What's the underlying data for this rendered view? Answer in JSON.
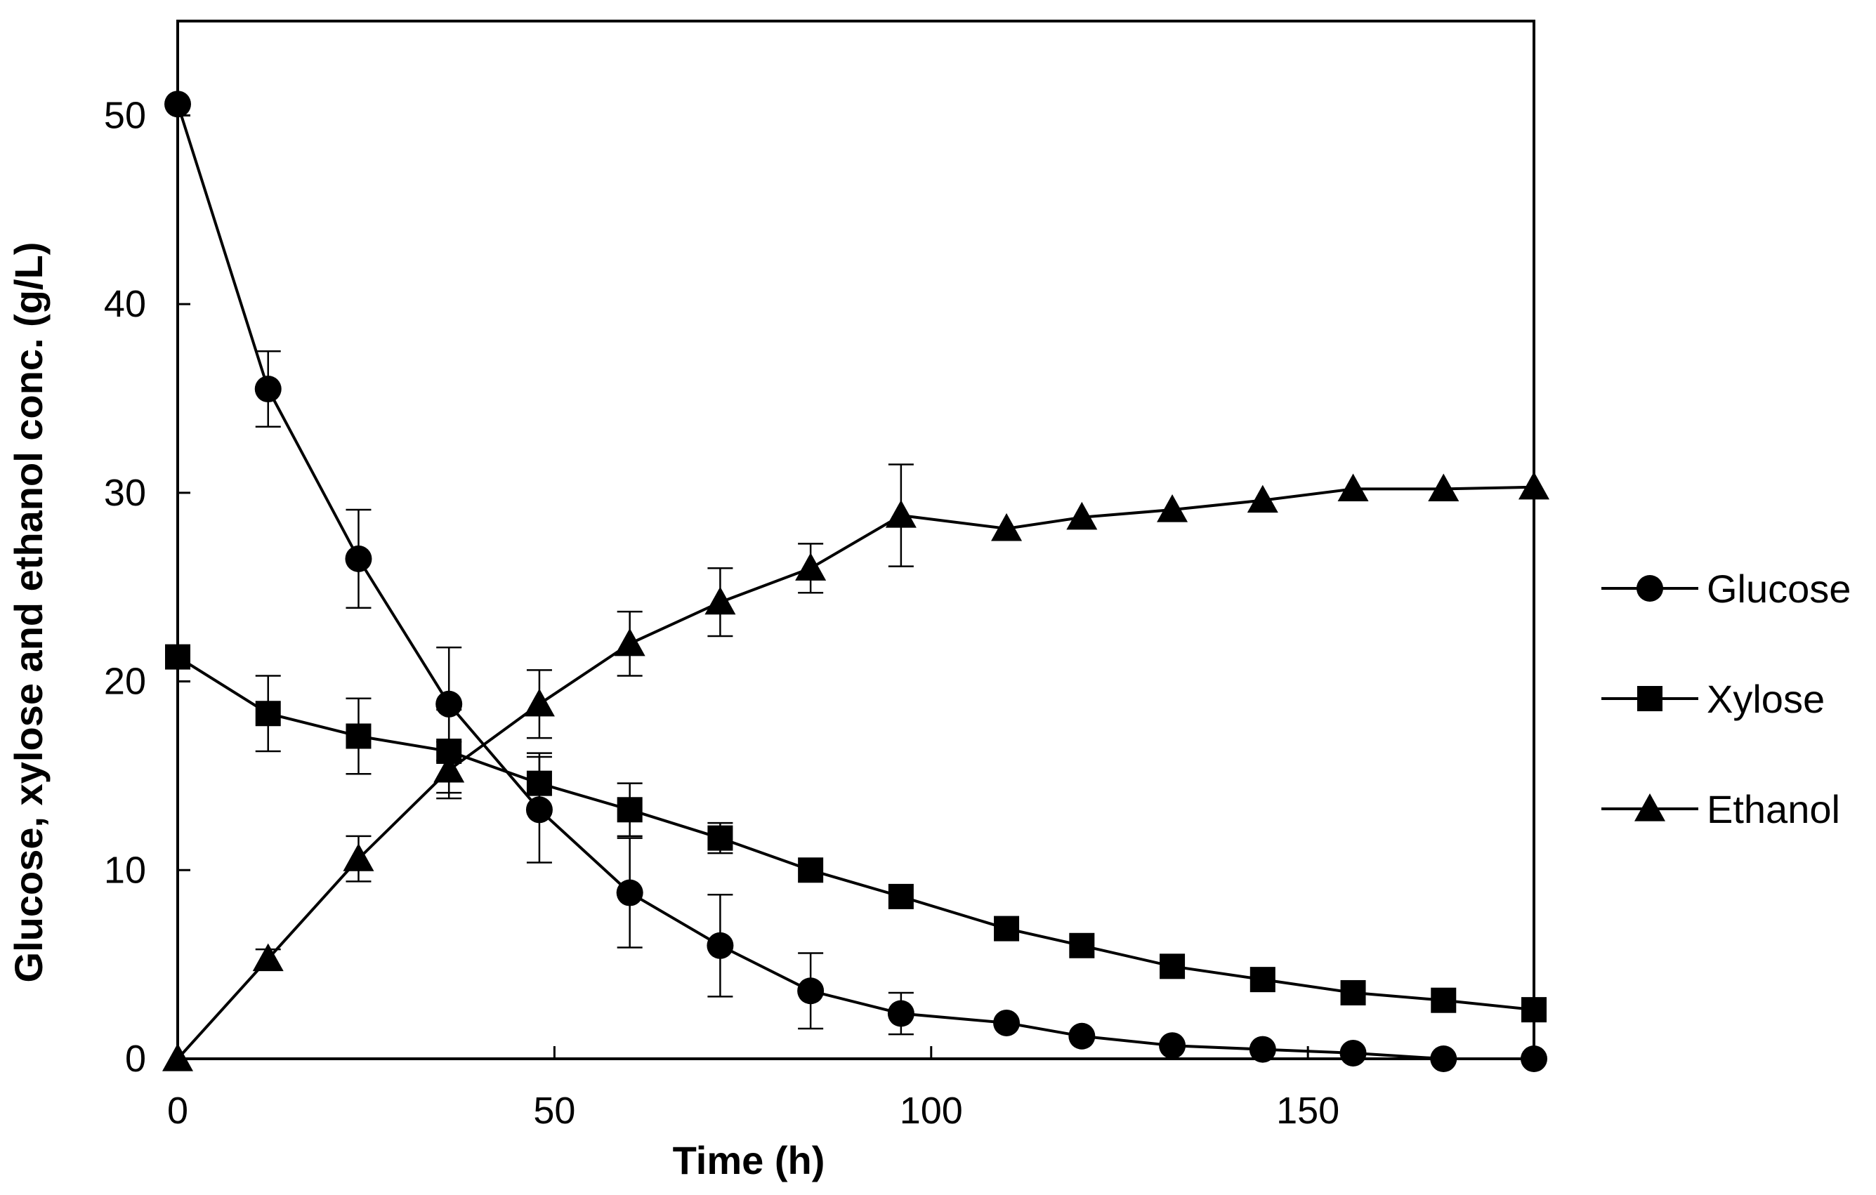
{
  "chart_data": {
    "type": "line",
    "title": "",
    "xlabel": "Time (h)",
    "ylabel": "Glucose, xylose and ethanol conc. (g/L)",
    "xlim": [
      0,
      180
    ],
    "ylim": [
      0,
      55
    ],
    "xticks": [
      0,
      50,
      100,
      150
    ],
    "yticks": [
      0,
      10,
      20,
      30,
      40,
      50
    ],
    "grid": false,
    "legend": "right",
    "series": [
      {
        "name": "Glucose",
        "marker": "circle",
        "x": [
          0,
          12,
          24,
          36,
          48,
          60,
          72,
          84,
          96,
          110,
          120,
          132,
          144,
          156,
          168,
          180
        ],
        "values": [
          50.6,
          35.5,
          26.5,
          18.8,
          13.2,
          8.8,
          6.0,
          3.6,
          2.4,
          1.9,
          1.2,
          0.7,
          0.5,
          0.3,
          0.0,
          0.0
        ],
        "err": [
          0,
          2.0,
          2.6,
          3.0,
          2.8,
          2.9,
          2.7,
          2.0,
          1.1,
          0,
          0,
          0,
          0,
          0,
          0,
          0
        ]
      },
      {
        "name": "Xylose",
        "marker": "square",
        "x": [
          0,
          12,
          24,
          36,
          48,
          60,
          72,
          84,
          96,
          110,
          120,
          132,
          144,
          156,
          168,
          180
        ],
        "values": [
          21.3,
          18.3,
          17.1,
          16.3,
          14.6,
          13.2,
          11.7,
          10.0,
          8.6,
          6.9,
          6.0,
          4.9,
          4.2,
          3.5,
          3.1,
          2.6
        ],
        "err": [
          0.3,
          2.0,
          2.0,
          2.2,
          1.6,
          1.4,
          0.8,
          0,
          0,
          0,
          0,
          0,
          0,
          0,
          0,
          0
        ]
      },
      {
        "name": "Ethanol",
        "marker": "triangle",
        "x": [
          0,
          12,
          24,
          36,
          48,
          60,
          72,
          84,
          96,
          110,
          120,
          132,
          144,
          156,
          168,
          180
        ],
        "values": [
          0.0,
          5.3,
          10.6,
          15.3,
          18.8,
          22.0,
          24.2,
          26.0,
          28.8,
          28.1,
          28.7,
          29.1,
          29.6,
          30.2,
          30.2,
          30.3
        ],
        "err": [
          0,
          0.5,
          1.2,
          1.5,
          1.8,
          1.7,
          1.8,
          1.3,
          2.7,
          0,
          0,
          0,
          0,
          0,
          0,
          0
        ]
      }
    ]
  }
}
